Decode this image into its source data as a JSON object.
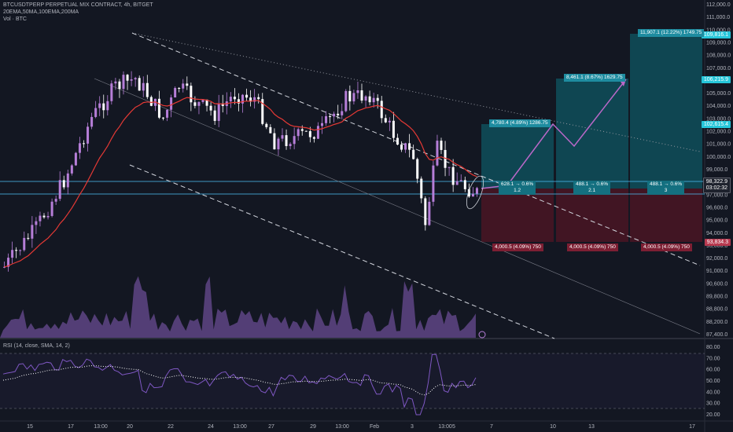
{
  "header": {
    "symbol_line": "BTCUSDTPERP PERPETUAL MIX CONTRACT, 4h, BITGET",
    "ema_line": "20EMA,50MA,100EMA,200MA",
    "vol_line": "Vol · BTC"
  },
  "rsi_header": "RSI (14, close, SMA, 14, 2)",
  "price_axis": [
    "112,000.0",
    "111,000.0",
    "110,000.0",
    "109,000.0",
    "108,000.0",
    "107,000.0",
    "106,000.0",
    "105,000.0",
    "104,000.0",
    "103,000.0",
    "102,000.0",
    "101,000.0",
    "100,000.0",
    "99,000.0",
    "98,000.0",
    "97,000.0",
    "96,600.0",
    "95,000.0",
    "94,000.0",
    "93,000.0",
    "92,000.0",
    "91,000.0",
    "90,600.0",
    "89,800.0",
    "88,800.0",
    "88,200.0",
    "87,400.0"
  ],
  "rsi_axis": [
    "80.00",
    "70.00",
    "60.00",
    "50.00",
    "40.00",
    "30.00",
    "20.00"
  ],
  "time_axis": [
    "15",
    "17",
    "13:00",
    "20",
    "22",
    "24",
    "13:00",
    "27",
    "29",
    "13:00",
    "Feb",
    "3",
    "13:00",
    "5",
    "7",
    "10",
    "13",
    "17"
  ],
  "price_tags": {
    "target_3": "109,816.1",
    "target_2": "106,215.9",
    "target_1": "102,615.4",
    "current": "98,322.9",
    "countdown": "03:02:32",
    "stop": "93,834.3"
  },
  "positions": [
    {
      "target_label": "4,780.4 (4.89%) 1286.75",
      "stop_label": "4,000.5 (4.09%) 750",
      "mid_label": "628.1 → 0.6%",
      "mid_sub": "1.2"
    },
    {
      "target_label": "8,461.1 (8.67%) 1629.75",
      "stop_label": "4,000.5 (4.09%) 750",
      "mid_label": "488.1 → 0.6%",
      "mid_sub": "2.1"
    },
    {
      "target_label": "11,907.1 (12.22%) 1749.75",
      "stop_label": "4,000.5 (4.09%) 750",
      "mid_label": "488.1 → 0.6%",
      "mid_sub": "3"
    }
  ],
  "colors": {
    "background": "#131722",
    "candle_bull": "#b67ed8",
    "candle_bear": "#ffffff",
    "ema": "#e53935",
    "target_zone": "#0f4f5a",
    "stop_zone": "#4a1523",
    "rsi_line": "#7e57c2",
    "tag_cyan": "#26c6da",
    "tag_red": "#b7394f"
  }
}
